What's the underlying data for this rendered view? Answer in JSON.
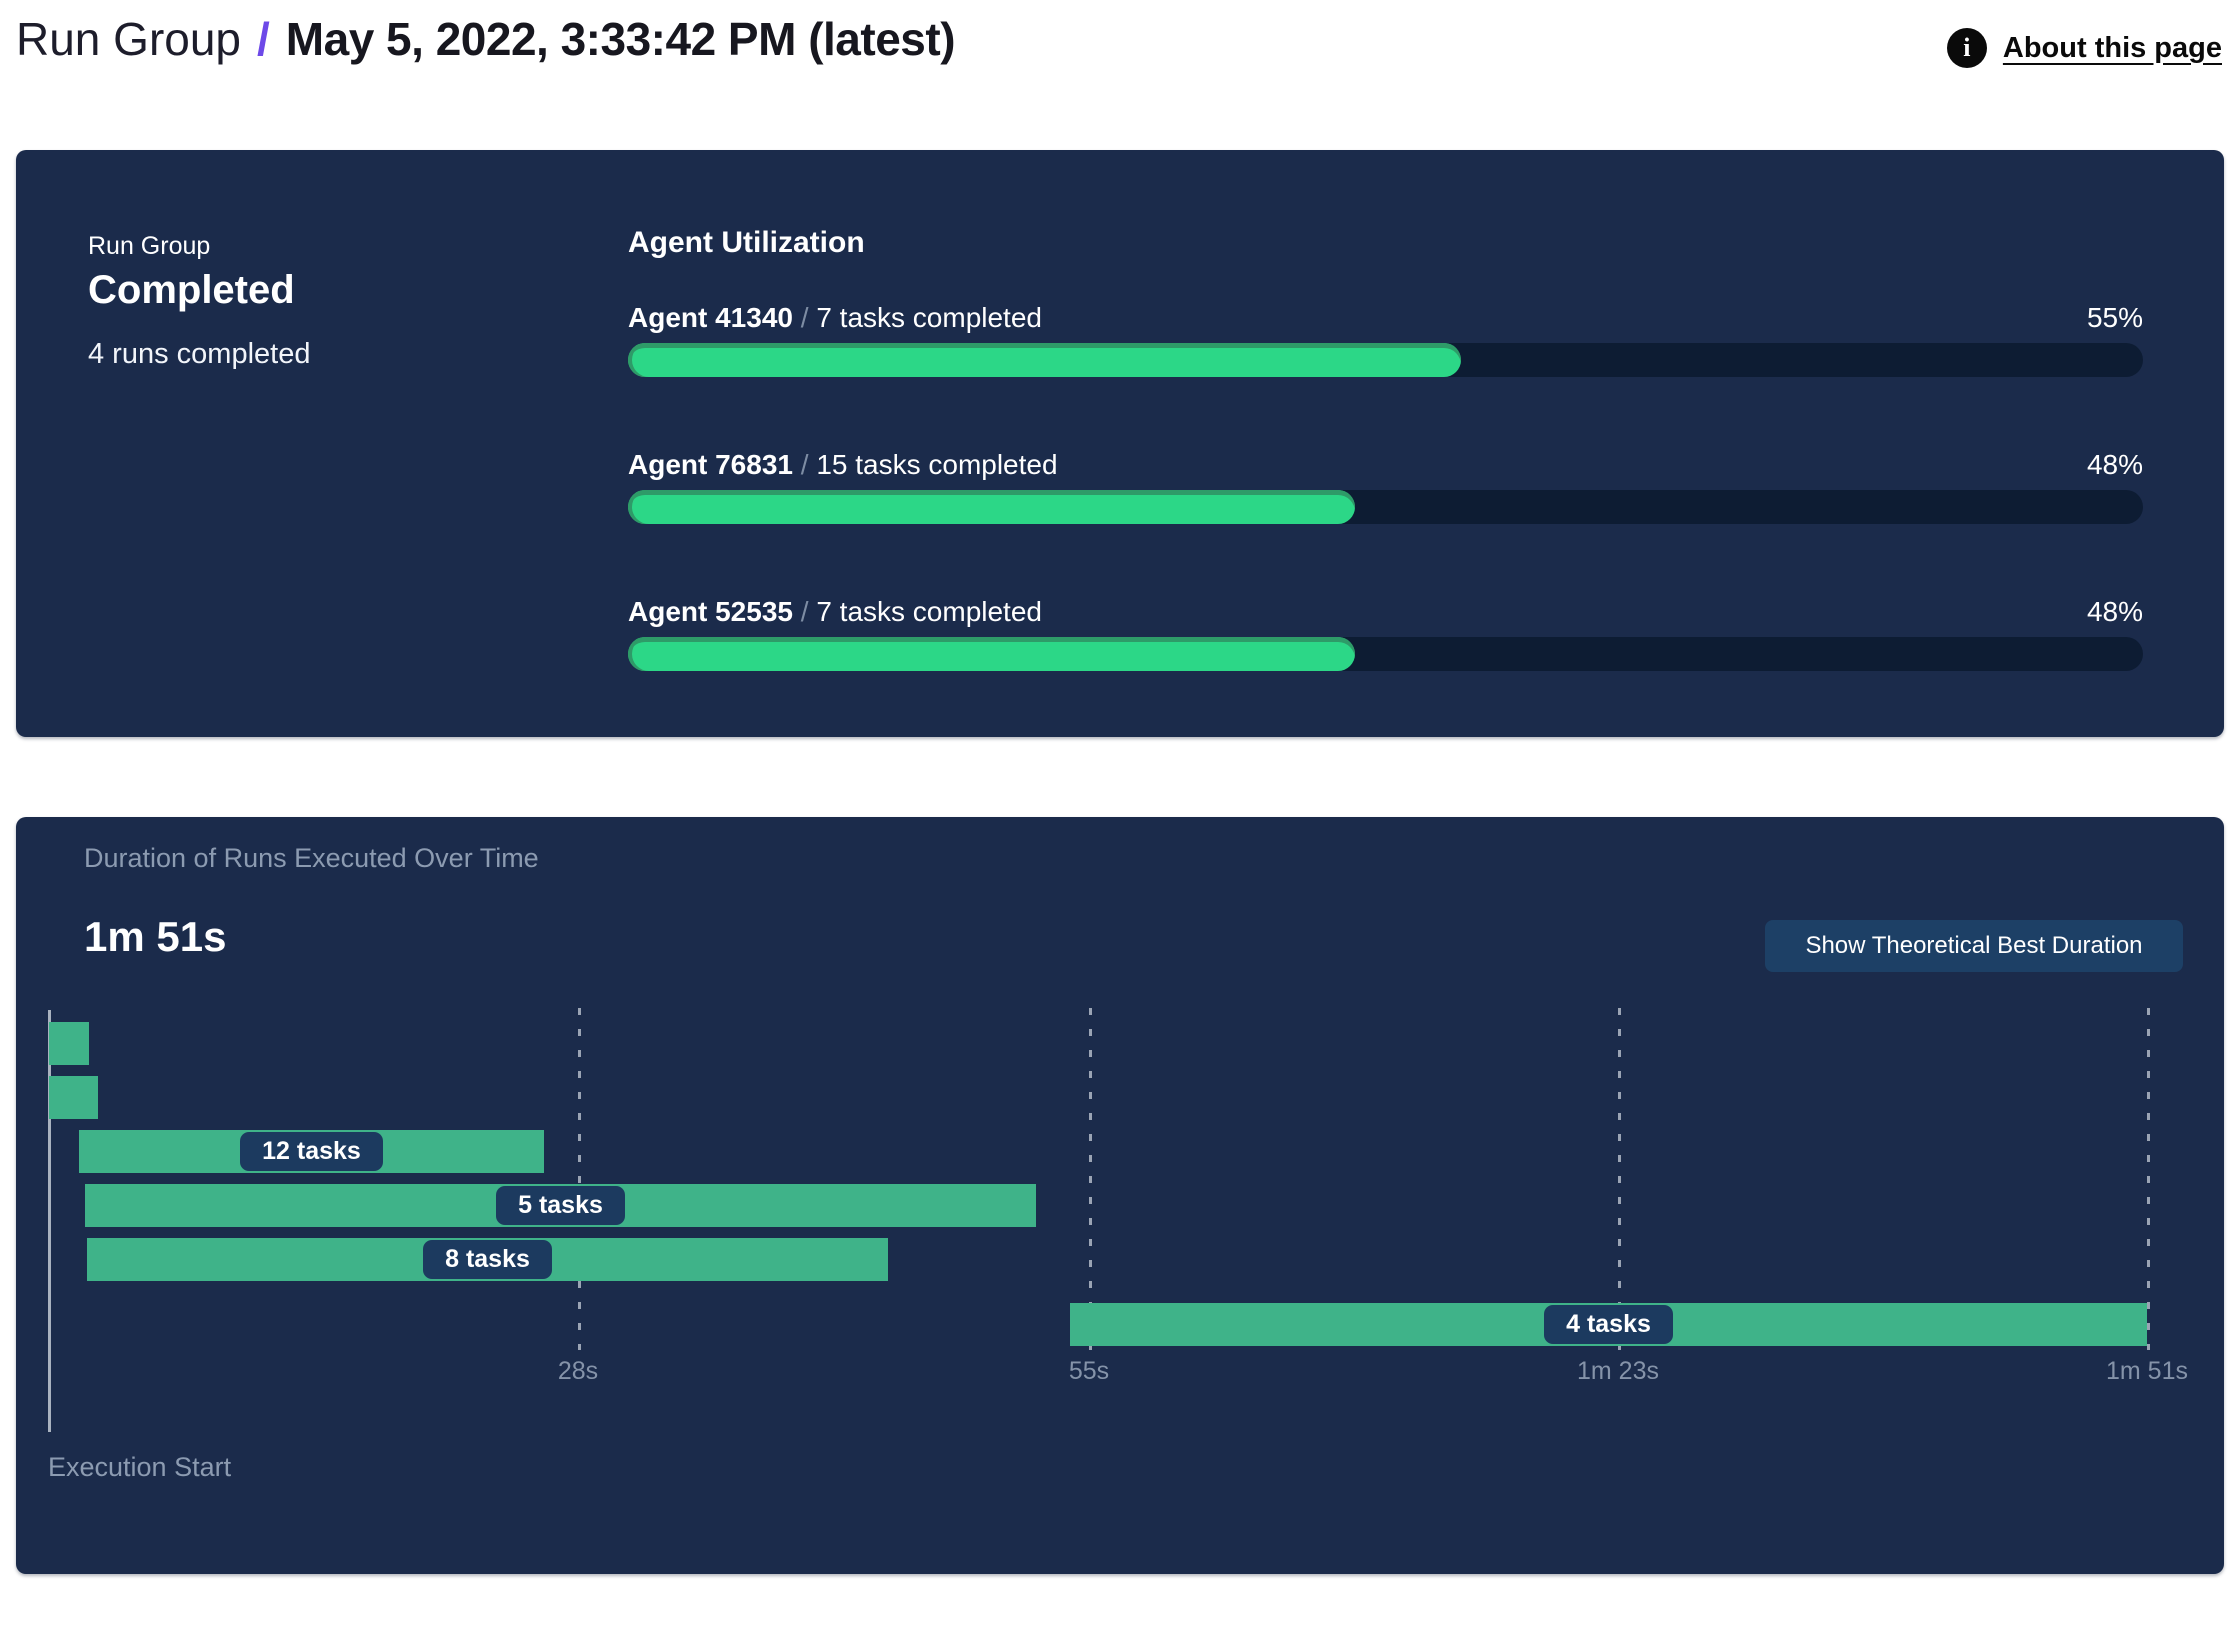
{
  "header": {
    "breadcrumb_root": "Run Group",
    "separator": "/",
    "title": "May 5, 2022, 3:33:42 PM (latest)",
    "info_icon_glyph": "i",
    "about_link": "About this page"
  },
  "colors": {
    "panel_bg": "#1b2b4b",
    "track_bg": "#0d1c33",
    "utilization_green": "#2cd787",
    "utilization_green_edge": "#2e9b68",
    "gantt_green": "#3fb389",
    "pill_bg": "#1c3a5f",
    "button_bg": "#1d4066",
    "accent_slash": "#6d49e8",
    "muted_text": "#8c9bb1"
  },
  "run_group_panel": {
    "label": "Run Group",
    "status": "Completed",
    "runs_completed": "4 runs completed",
    "utilization_title": "Agent Utilization",
    "name_task_separator": "/",
    "agents": [
      {
        "name": "Agent 41340",
        "tasks": "7 tasks completed",
        "percent": 55
      },
      {
        "name": "Agent 76831",
        "tasks": "15 tasks completed",
        "percent": 48
      },
      {
        "name": "Agent 52535",
        "tasks": "7 tasks completed",
        "percent": 48
      }
    ]
  },
  "duration_panel": {
    "subtitle": "Duration of Runs Executed Over Time",
    "total_duration": "1m 51s",
    "button_label": "Show Theoretical Best Duration",
    "execution_start_label": "Execution Start"
  },
  "chart_data": {
    "type": "gantt",
    "title": "Duration of Runs Executed Over Time",
    "total_duration_label": "1m 51s",
    "x_range_s": [
      0,
      111
    ],
    "x_ticks": [
      {
        "label": "28s",
        "t": 28
      },
      {
        "label": "55s",
        "t": 55
      },
      {
        "label": "1m 23s",
        "t": 83
      },
      {
        "label": "1m 51s",
        "t": 111
      }
    ],
    "bars": [
      {
        "start_s": 0,
        "end_s": 2.1,
        "label": null
      },
      {
        "start_s": 0,
        "end_s": 2.6,
        "label": null
      },
      {
        "start_s": 1.6,
        "end_s": 26.2,
        "label": "12 tasks"
      },
      {
        "start_s": 1.9,
        "end_s": 52.2,
        "label": "5 tasks"
      },
      {
        "start_s": 2.0,
        "end_s": 44.4,
        "label": "8 tasks"
      },
      {
        "start_s": 54.0,
        "end_s": 111,
        "label": "4 tasks"
      }
    ]
  }
}
